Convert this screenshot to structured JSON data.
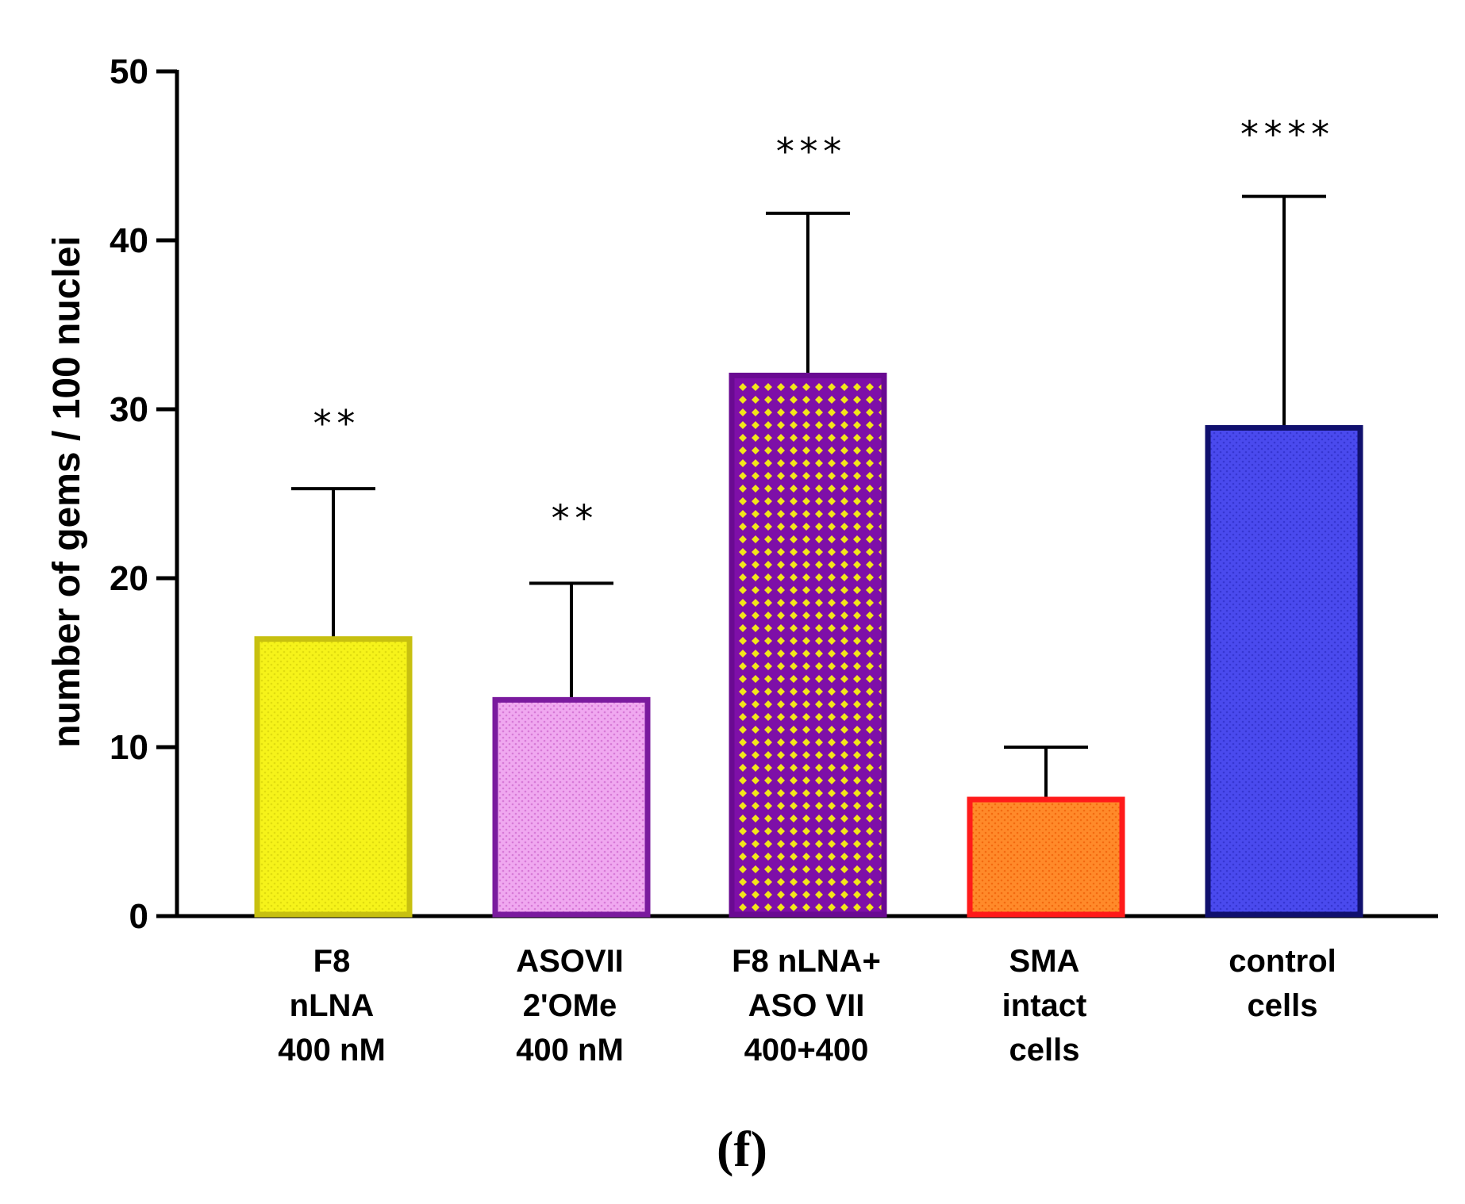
{
  "chart_data": {
    "type": "bar",
    "title": "",
    "xlabel": "",
    "ylabel": "number of gems / 100 nuclei",
    "ylim": [
      0,
      50
    ],
    "yticks": [
      0,
      10,
      20,
      30,
      40,
      50
    ],
    "grid": false,
    "panel_label": "(f)",
    "categories": [
      {
        "lines": [
          "F8",
          "nLNA",
          "400 nM"
        ]
      },
      {
        "lines": [
          "ASOVII",
          "2'OMe",
          "400 nM"
        ]
      },
      {
        "lines": [
          "F8 nLNA+",
          "ASO VII",
          "400+400"
        ]
      },
      {
        "lines": [
          "SMA",
          "intact",
          "cells"
        ]
      },
      {
        "lines": [
          "control",
          "cells"
        ]
      }
    ],
    "values": [
      16.4,
      12.8,
      32.0,
      6.9,
      28.9
    ],
    "error_upper": [
      25.3,
      19.7,
      41.6,
      10.0,
      42.6
    ],
    "significance": [
      "**",
      "**",
      "***",
      "",
      "****"
    ],
    "colors": [
      {
        "fill": "#f6f31a",
        "stroke": "#c7c010",
        "dot": "#e0dc10",
        "pattern": "fine"
      },
      {
        "fill": "#f0a8f0",
        "stroke": "#7a1a9e",
        "dot": "#d77ad7",
        "pattern": "fine"
      },
      {
        "fill": "#7e0fa8",
        "stroke": "#6a0a92",
        "dot": "#f2e51a",
        "pattern": "diamond"
      },
      {
        "fill": "#ff8a2a",
        "stroke": "#ff1a1a",
        "dot": "#f36a10",
        "pattern": "fine"
      },
      {
        "fill": "#4a4aee",
        "stroke": "#10106e",
        "dot": "#3636d2",
        "pattern": "fine"
      }
    ]
  }
}
